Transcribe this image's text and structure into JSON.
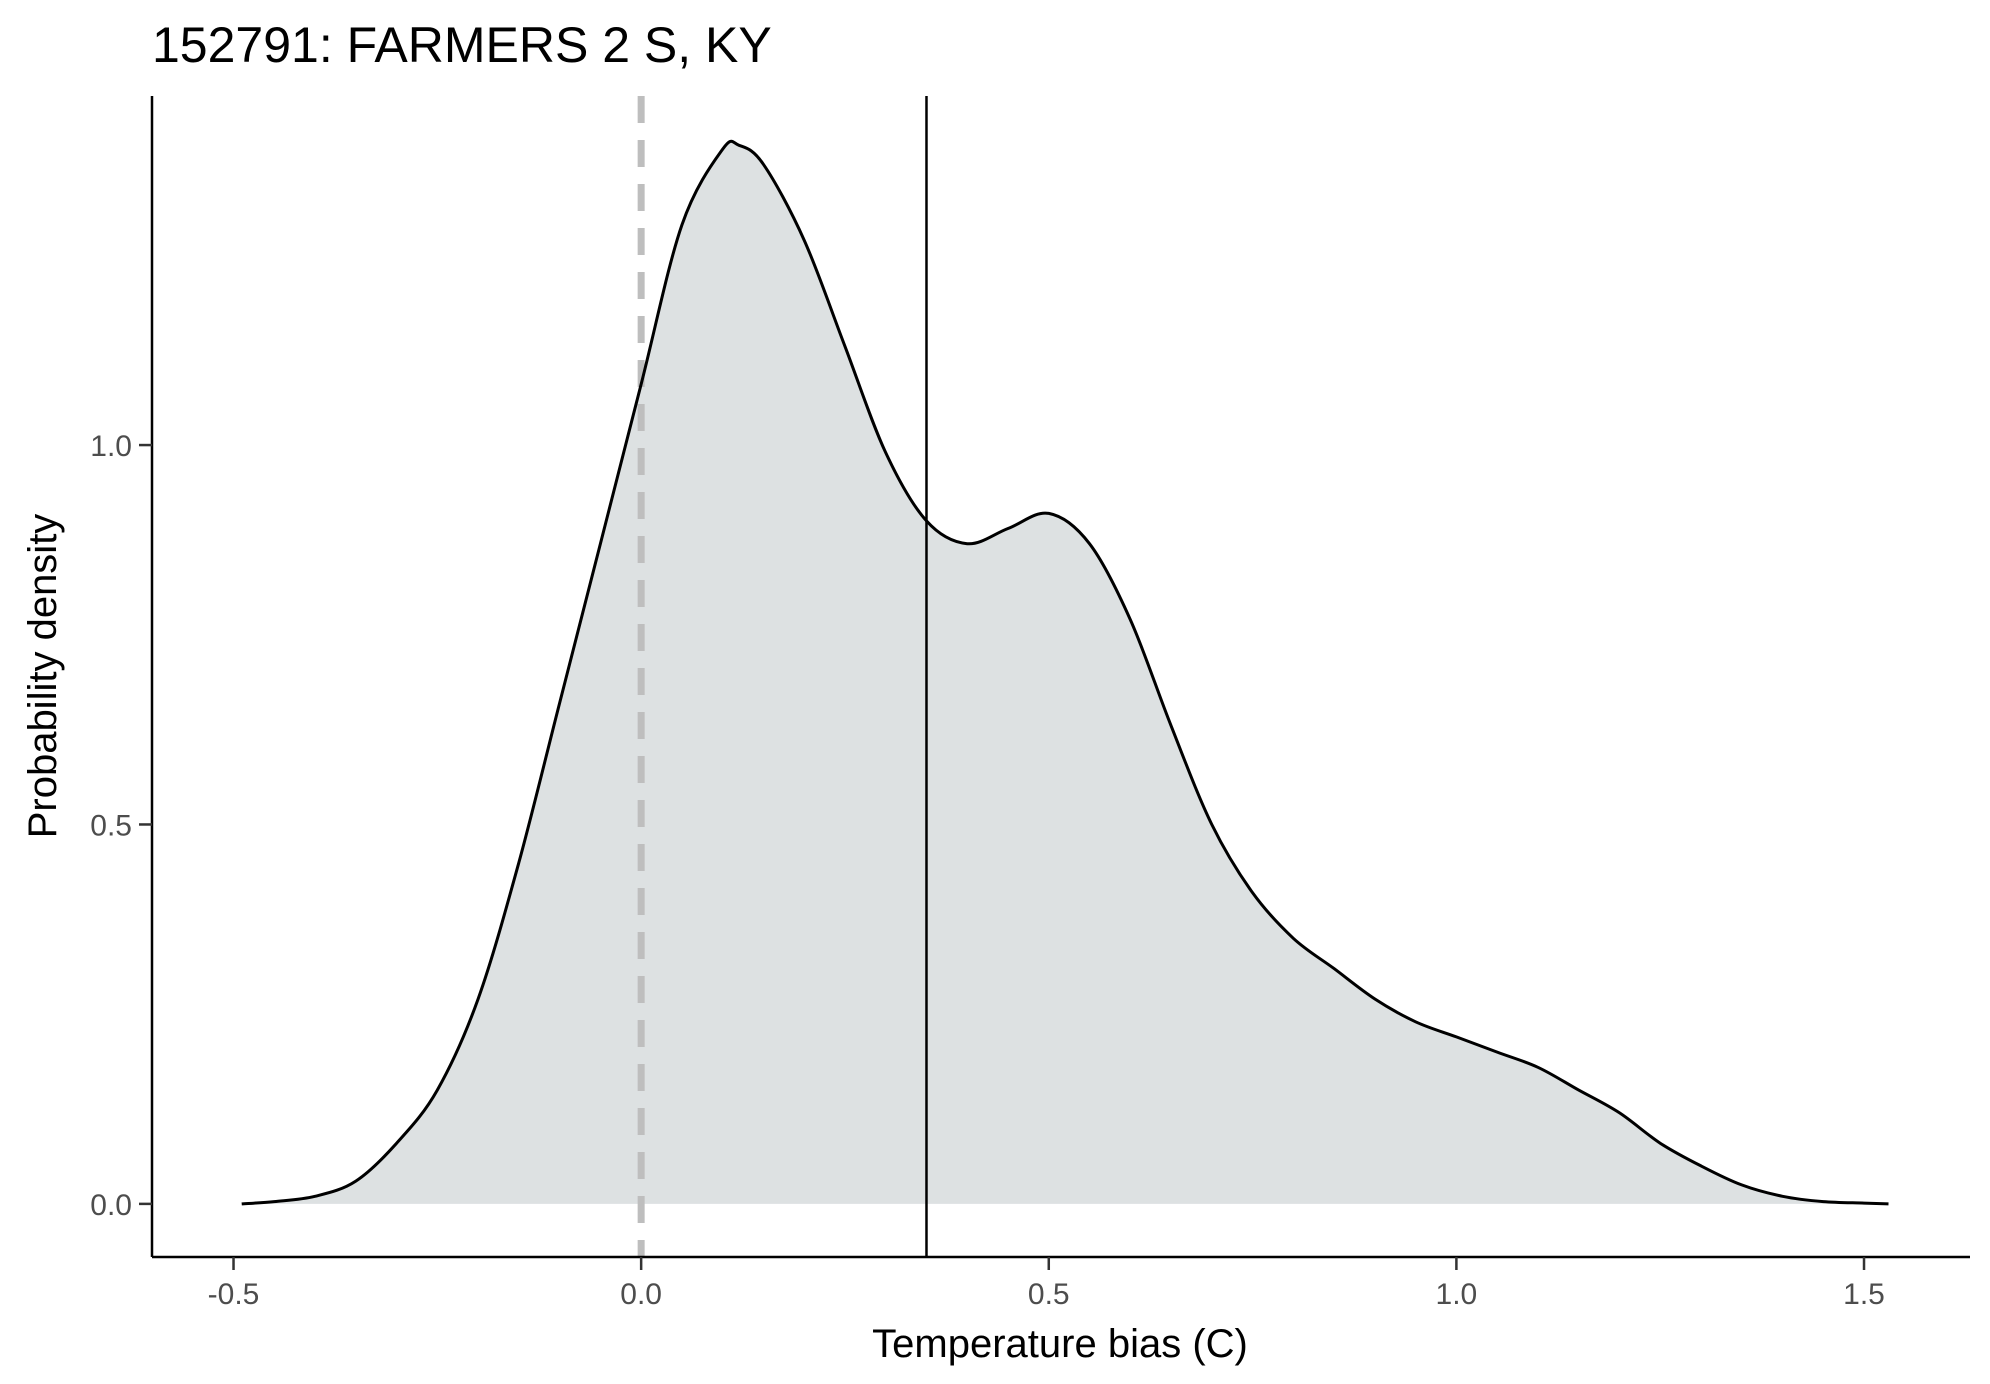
{
  "chart_data": {
    "type": "area",
    "title": "152791: FARMERS 2 S, KY",
    "xlabel": "Temperature bias (C)",
    "ylabel": "Probability density",
    "xlim": [
      -0.6,
      1.63
    ],
    "ylim": [
      -0.07,
      1.46
    ],
    "x_ticks": [
      -0.5,
      0.0,
      0.5,
      1.0,
      1.5
    ],
    "x_tick_labels": [
      "-0.5",
      "0.0",
      "0.5",
      "1.0",
      "1.5"
    ],
    "y_ticks": [
      0.0,
      0.5,
      1.0
    ],
    "y_tick_labels": [
      "0.0",
      "0.5",
      "1.0"
    ],
    "grid": false,
    "reference_lines": [
      {
        "x": 0.0,
        "style": "dashed",
        "color": "#bebebe"
      },
      {
        "x": 0.35,
        "style": "solid",
        "color": "#000000"
      }
    ],
    "series": [
      {
        "fill": "#dde1e2",
        "stroke": "#000000",
        "x": [
          -0.49,
          -0.45,
          -0.4,
          -0.35,
          -0.3,
          -0.25,
          -0.2,
          -0.15,
          -0.1,
          -0.05,
          0.0,
          0.05,
          0.1,
          0.12,
          0.15,
          0.2,
          0.25,
          0.3,
          0.35,
          0.4,
          0.45,
          0.5,
          0.55,
          0.6,
          0.65,
          0.7,
          0.75,
          0.8,
          0.85,
          0.9,
          0.95,
          1.0,
          1.05,
          1.1,
          1.15,
          1.2,
          1.25,
          1.3,
          1.35,
          1.4,
          1.45,
          1.5,
          1.53
        ],
        "y": [
          0.0,
          0.003,
          0.01,
          0.03,
          0.08,
          0.15,
          0.27,
          0.45,
          0.66,
          0.87,
          1.08,
          1.29,
          1.39,
          1.395,
          1.37,
          1.27,
          1.13,
          0.99,
          0.9,
          0.87,
          0.89,
          0.91,
          0.87,
          0.77,
          0.63,
          0.5,
          0.41,
          0.35,
          0.31,
          0.27,
          0.24,
          0.22,
          0.2,
          0.18,
          0.15,
          0.12,
          0.08,
          0.05,
          0.025,
          0.01,
          0.003,
          0.001,
          0.0
        ]
      }
    ]
  }
}
